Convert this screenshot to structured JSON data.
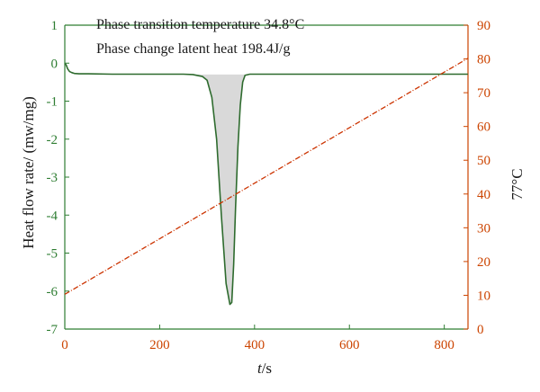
{
  "chart_data": {
    "type": "line",
    "annotations": [
      "Phase transition temperature 34.8°C",
      "Phase change latent heat 198.4J/g"
    ],
    "xlabel_italic": "t",
    "xlabel_unit": "/s",
    "ylabel_left": "Heat flow rate/ (mw/mg)",
    "ylabel_right": "77°C",
    "xlim": [
      0,
      850
    ],
    "ylim_left": [
      -7,
      1
    ],
    "ylim_right": [
      0,
      90
    ],
    "x_ticks": [
      "0",
      "200",
      "400",
      "600",
      "800"
    ],
    "y_left_ticks": [
      "1",
      "0",
      "-1",
      "-2",
      "-3",
      "-4",
      "-5",
      "-6",
      "-7"
    ],
    "y_right_ticks": [
      "90",
      "80",
      "70",
      "60",
      "50",
      "40",
      "30",
      "20",
      "10",
      "0"
    ],
    "grid": false,
    "colors": {
      "heat_flow": "#2e6b2e",
      "temperature": "#cc3300",
      "left_axis": "#2e7d32",
      "right_axis": "#cc4400",
      "peak_fill": "#d9d9d9"
    },
    "series": [
      {
        "axis": "left",
        "x": [
          0,
          3,
          6,
          10,
          15,
          20,
          30,
          50,
          100,
          150,
          200,
          250,
          270,
          290,
          300,
          310,
          320,
          330,
          340,
          348,
          352,
          356,
          360,
          365,
          370,
          375,
          380,
          390,
          400,
          500,
          600,
          700,
          800,
          850
        ],
        "y": [
          0.0,
          -0.05,
          -0.15,
          -0.22,
          -0.25,
          -0.27,
          -0.28,
          -0.28,
          -0.29,
          -0.29,
          -0.29,
          -0.29,
          -0.3,
          -0.35,
          -0.45,
          -0.9,
          -2.0,
          -4.0,
          -5.8,
          -6.35,
          -6.3,
          -5.3,
          -3.8,
          -2.2,
          -1.1,
          -0.5,
          -0.32,
          -0.29,
          -0.29,
          -0.29,
          -0.29,
          -0.29,
          -0.29,
          -0.29
        ]
      },
      {
        "axis": "right",
        "x": [
          0,
          850
        ],
        "y": [
          10.3,
          80.2
        ]
      }
    ],
    "fill_region_x": [
      270,
      390
    ]
  }
}
